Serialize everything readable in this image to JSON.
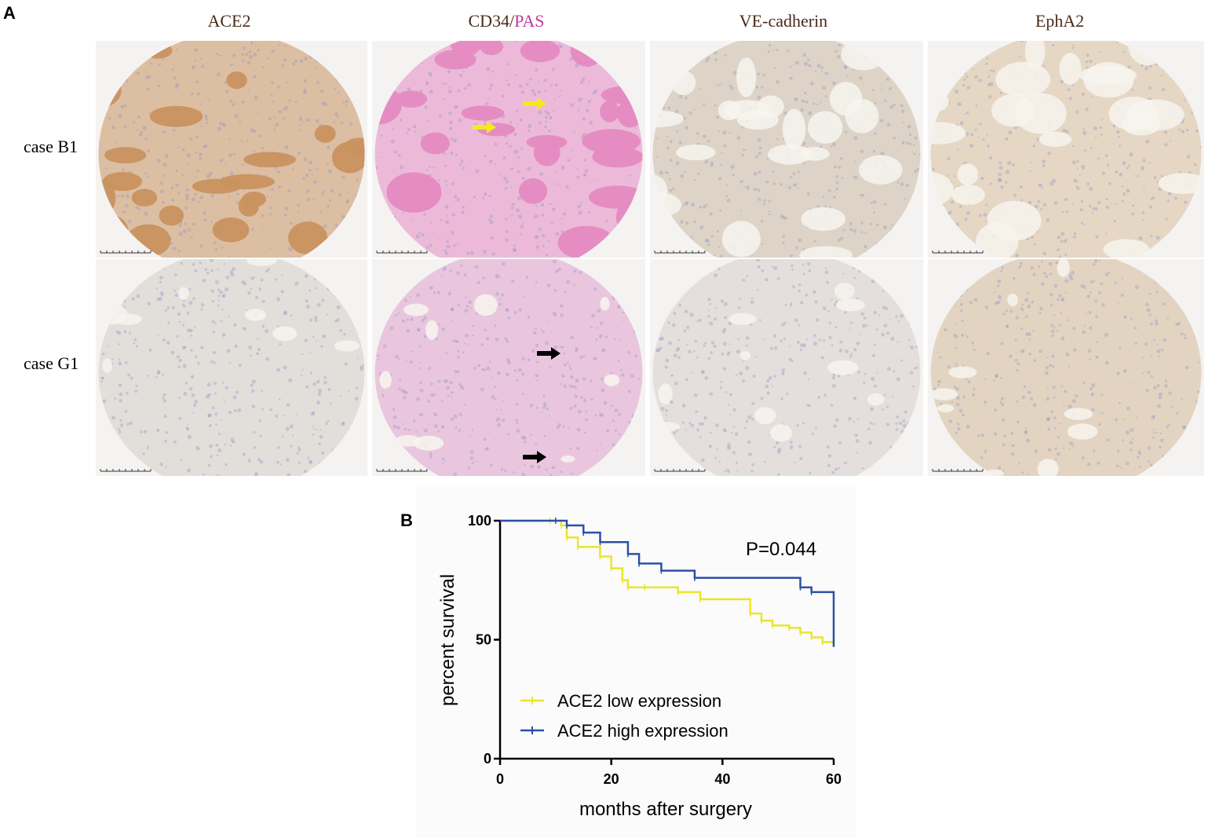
{
  "panel_a": {
    "letter": "A",
    "columns": [
      {
        "label": "ACE2"
      },
      {
        "label_main": "CD34/",
        "label_accent": "PAS"
      },
      {
        "label": "VE-cadherin"
      },
      {
        "label": "EphA2"
      }
    ],
    "rows": [
      {
        "label": "case B1"
      },
      {
        "label": "case G1"
      }
    ],
    "stain_colors": {
      "ace2_b1": "#c89260",
      "pas_b1": "#e58ac2",
      "ve_b1": "#cbb9a4",
      "eph_b1": "#d9c09e",
      "ace2_g1": "#d6d0cc",
      "pas_g1": "#e2a8d2",
      "ve_g1": "#d8d2ce",
      "eph_g1": "#d7bfa4",
      "hematoxylin": "#8f8fc4"
    },
    "arrows": [
      {
        "color": "yellow",
        "tile": "CD34/PAS case B1"
      },
      {
        "color": "yellow",
        "tile": "CD34/PAS case B1"
      },
      {
        "color": "black",
        "tile": "CD34/PAS case G1"
      },
      {
        "color": "black",
        "tile": "CD34/PAS case G1"
      }
    ]
  },
  "panel_b": {
    "letter": "B",
    "annotation": "P=0.044"
  },
  "chart_data": {
    "type": "line",
    "step": true,
    "xlabel": "months after  surgery",
    "ylabel": "percent survival",
    "xlim": [
      0,
      60
    ],
    "ylim": [
      0,
      100
    ],
    "xticks": [
      0,
      20,
      40,
      60
    ],
    "yticks": [
      0,
      50,
      100
    ],
    "legend_position": "bottom-left",
    "series": [
      {
        "name": "ACE2 low expression",
        "color": "#e8e62a",
        "x": [
          0,
          9,
          11,
          12,
          14,
          18,
          20,
          22,
          23,
          26,
          32,
          36,
          45,
          47,
          49,
          52,
          54,
          56,
          58,
          60
        ],
        "y": [
          100,
          100,
          98,
          93,
          89,
          85,
          80,
          75,
          72,
          72,
          70,
          67,
          61,
          58,
          56,
          55,
          53,
          51,
          49,
          47
        ]
      },
      {
        "name": "ACE2 high expression",
        "color": "#2e4fa6",
        "x": [
          0,
          10,
          12,
          15,
          18,
          23,
          25,
          29,
          35,
          54,
          56,
          60
        ],
        "y": [
          100,
          100,
          98,
          95,
          91,
          86,
          82,
          79,
          76,
          72,
          70,
          47
        ]
      }
    ]
  }
}
